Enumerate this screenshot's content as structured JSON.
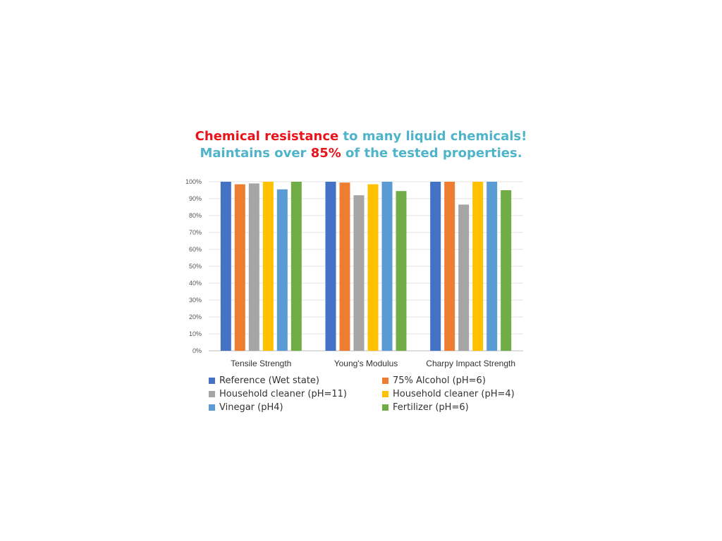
{
  "headline": {
    "line1_red": "Chemical resistance",
    "line1_teal": " to many liquid chemicals!",
    "line2_teal_a": "Maintains over ",
    "line2_red": "85%",
    "line2_teal_b": " of the tested properties."
  },
  "colors": {
    "headline_red": "#e8141b",
    "headline_teal": "#4fb4c9"
  },
  "chart_data": {
    "type": "bar",
    "categories": [
      "Tensile Strength",
      "Young's Modulus",
      "Charpy Impact Strength"
    ],
    "series": [
      {
        "name": "Reference (Wet state)",
        "color": "#4472c4",
        "values": [
          100,
          100,
          100
        ]
      },
      {
        "name": "75% Alcohol (pH=6)",
        "color": "#ed7d31",
        "values": [
          98.5,
          99.5,
          100
        ]
      },
      {
        "name": "Household cleaner (pH=11)",
        "color": "#a5a5a5",
        "values": [
          99,
          92,
          86.5
        ]
      },
      {
        "name": "Household cleaner (pH=4)",
        "color": "#ffc000",
        "values": [
          100,
          98.5,
          100
        ]
      },
      {
        "name": "Vinegar (pH4)",
        "color": "#5b9bd5",
        "values": [
          95.5,
          100,
          100
        ]
      },
      {
        "name": "Fertilizer (pH=6)",
        "color": "#70ad47",
        "values": [
          100,
          94.5,
          95
        ]
      }
    ],
    "ylim": [
      0,
      100
    ],
    "yticks": [
      "0%",
      "10%",
      "20%",
      "30%",
      "40%",
      "50%",
      "60%",
      "70%",
      "80%",
      "90%",
      "100%"
    ],
    "grid": true,
    "legend_position": "bottom"
  }
}
